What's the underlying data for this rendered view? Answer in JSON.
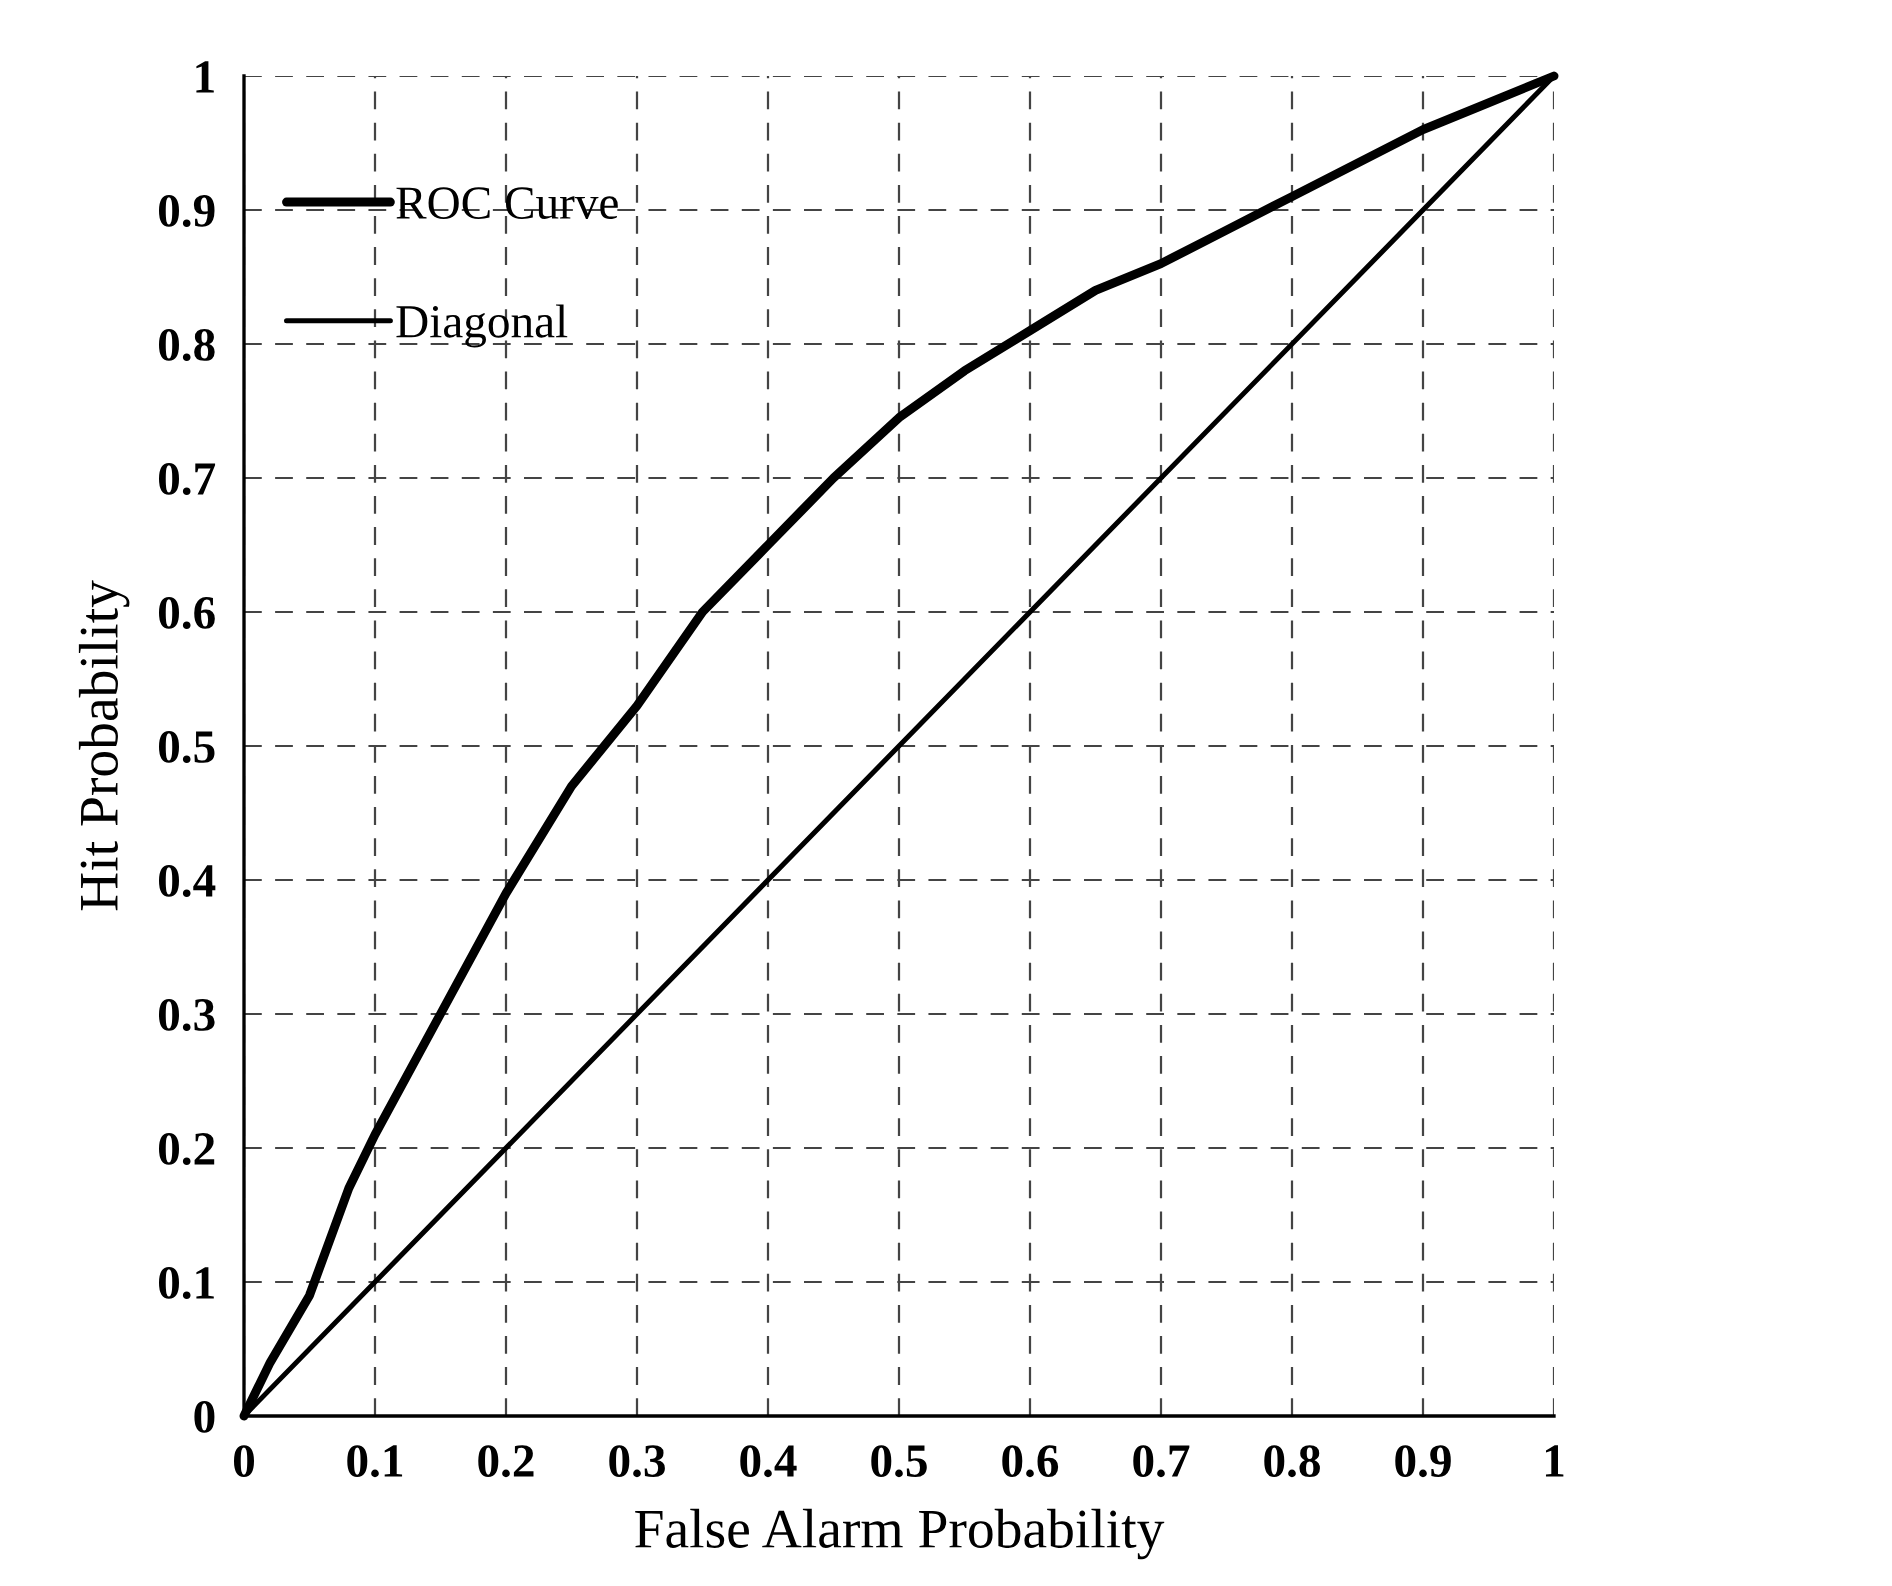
{
  "chart_data": {
    "type": "line",
    "xlabel": "False Alarm Probability",
    "ylabel": "Hit Probability",
    "series": [
      {
        "name": "ROC Curve",
        "color": "#000000",
        "x": [
          0,
          0.02,
          0.05,
          0.08,
          0.1,
          0.15,
          0.2,
          0.25,
          0.3,
          0.35,
          0.4,
          0.45,
          0.5,
          0.55,
          0.6,
          0.65,
          0.7,
          0.75,
          0.8,
          0.85,
          0.9,
          0.95,
          1
        ],
        "values": [
          0,
          0.04,
          0.09,
          0.17,
          0.21,
          0.3,
          0.39,
          0.47,
          0.53,
          0.6,
          0.65,
          0.7,
          0.745,
          0.78,
          0.81,
          0.84,
          0.86,
          0.885,
          0.91,
          0.935,
          0.96,
          0.98,
          1
        ]
      },
      {
        "name": "Diagonal",
        "color": "#000000",
        "x": [
          0,
          1
        ],
        "values": [
          0,
          1
        ]
      }
    ],
    "xlim": [
      0,
      1
    ],
    "ylim": [
      0,
      1
    ],
    "xticks": [
      0,
      0.1,
      0.2,
      0.3,
      0.4,
      0.5,
      0.6,
      0.7,
      0.8,
      0.9,
      1
    ],
    "yticks": [
      0,
      0.1,
      0.2,
      0.3,
      0.4,
      0.5,
      0.6,
      0.7,
      0.8,
      0.9,
      1
    ],
    "grid": true,
    "legend": "top left",
    "line_style": "solid",
    "marker": "none"
  }
}
